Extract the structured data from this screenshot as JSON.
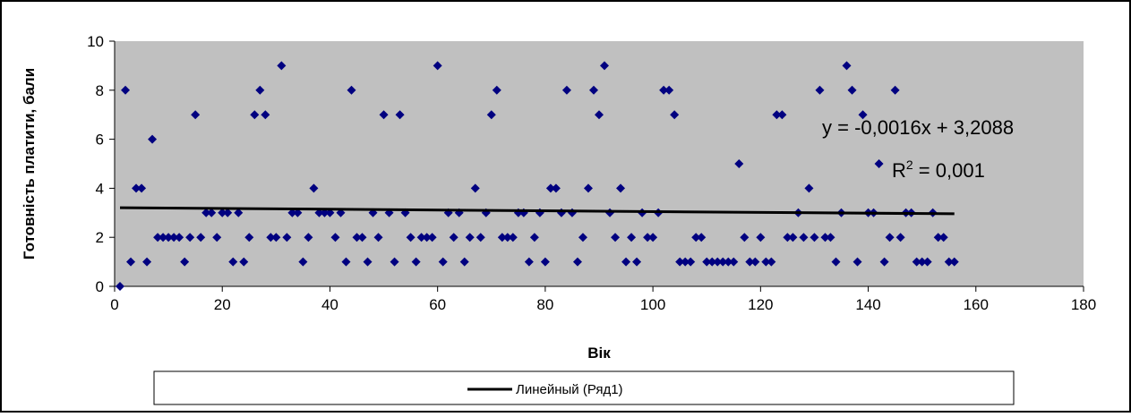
{
  "chart_data": {
    "type": "scatter",
    "xlabel": "Вік",
    "ylabel": "Готовність платити, бали",
    "xlim": [
      0,
      180
    ],
    "ylim": [
      0,
      10
    ],
    "x_ticks": [
      "0",
      "20",
      "40",
      "60",
      "80",
      "100",
      "120",
      "140",
      "160",
      "180"
    ],
    "y_ticks": [
      "0",
      "2",
      "4",
      "6",
      "8",
      "10"
    ],
    "grid": false,
    "plot_background": "#c0c0c0",
    "marker_color": "#000080",
    "trendline_color": "#000000",
    "legend_position": "bottom",
    "legend_entries": [
      "Линейный (Ряд1)"
    ],
    "annotations": {
      "equation": "y = -0,0016x + 3,2088",
      "r2_prefix": "R",
      "r2_sup": "2",
      "r2_suffix": " = 0,001"
    },
    "trendline": {
      "slope": -0.0016,
      "intercept": 3.2088,
      "x_range": [
        1,
        156
      ]
    },
    "series": [
      {
        "values": [
          [
            1,
            0
          ],
          [
            2,
            8
          ],
          [
            3,
            1
          ],
          [
            4,
            4
          ],
          [
            5,
            4
          ],
          [
            6,
            1
          ],
          [
            7,
            6
          ],
          [
            8,
            2
          ],
          [
            9,
            2
          ],
          [
            10,
            2
          ],
          [
            11,
            2
          ],
          [
            12,
            2
          ],
          [
            13,
            1
          ],
          [
            14,
            2
          ],
          [
            15,
            7
          ],
          [
            16,
            2
          ],
          [
            17,
            3
          ],
          [
            18,
            3
          ],
          [
            19,
            2
          ],
          [
            20,
            3
          ],
          [
            21,
            3
          ],
          [
            22,
            1
          ],
          [
            23,
            3
          ],
          [
            24,
            1
          ],
          [
            25,
            2
          ],
          [
            26,
            7
          ],
          [
            27,
            8
          ],
          [
            28,
            7
          ],
          [
            29,
            2
          ],
          [
            30,
            2
          ],
          [
            31,
            9
          ],
          [
            32,
            2
          ],
          [
            33,
            3
          ],
          [
            34,
            3
          ],
          [
            35,
            1
          ],
          [
            36,
            2
          ],
          [
            37,
            4
          ],
          [
            38,
            3
          ],
          [
            39,
            3
          ],
          [
            40,
            3
          ],
          [
            41,
            2
          ],
          [
            42,
            3
          ],
          [
            43,
            1
          ],
          [
            44,
            8
          ],
          [
            45,
            2
          ],
          [
            46,
            2
          ],
          [
            47,
            1
          ],
          [
            48,
            3
          ],
          [
            49,
            2
          ],
          [
            50,
            7
          ],
          [
            51,
            3
          ],
          [
            52,
            1
          ],
          [
            53,
            7
          ],
          [
            54,
            3
          ],
          [
            55,
            2
          ],
          [
            56,
            1
          ],
          [
            57,
            2
          ],
          [
            58,
            2
          ],
          [
            59,
            2
          ],
          [
            60,
            9
          ],
          [
            61,
            1
          ],
          [
            62,
            3
          ],
          [
            63,
            2
          ],
          [
            64,
            3
          ],
          [
            65,
            1
          ],
          [
            66,
            2
          ],
          [
            67,
            4
          ],
          [
            68,
            2
          ],
          [
            69,
            3
          ],
          [
            70,
            7
          ],
          [
            71,
            8
          ],
          [
            72,
            2
          ],
          [
            73,
            2
          ],
          [
            74,
            2
          ],
          [
            75,
            3
          ],
          [
            76,
            3
          ],
          [
            77,
            1
          ],
          [
            78,
            2
          ],
          [
            79,
            3
          ],
          [
            80,
            1
          ],
          [
            81,
            4
          ],
          [
            82,
            4
          ],
          [
            83,
            3
          ],
          [
            84,
            8
          ],
          [
            85,
            3
          ],
          [
            86,
            1
          ],
          [
            87,
            2
          ],
          [
            88,
            4
          ],
          [
            89,
            8
          ],
          [
            90,
            7
          ],
          [
            91,
            9
          ],
          [
            92,
            3
          ],
          [
            93,
            2
          ],
          [
            94,
            4
          ],
          [
            95,
            1
          ],
          [
            96,
            2
          ],
          [
            97,
            1
          ],
          [
            98,
            3
          ],
          [
            99,
            2
          ],
          [
            100,
            2
          ],
          [
            101,
            3
          ],
          [
            102,
            8
          ],
          [
            103,
            8
          ],
          [
            104,
            7
          ],
          [
            105,
            1
          ],
          [
            106,
            1
          ],
          [
            107,
            1
          ],
          [
            108,
            2
          ],
          [
            109,
            2
          ],
          [
            110,
            1
          ],
          [
            111,
            1
          ],
          [
            112,
            1
          ],
          [
            113,
            1
          ],
          [
            114,
            1
          ],
          [
            115,
            1
          ],
          [
            116,
            5
          ],
          [
            117,
            2
          ],
          [
            118,
            1
          ],
          [
            119,
            1
          ],
          [
            120,
            2
          ],
          [
            121,
            1
          ],
          [
            122,
            1
          ],
          [
            123,
            7
          ],
          [
            124,
            7
          ],
          [
            125,
            2
          ],
          [
            126,
            2
          ],
          [
            127,
            3
          ],
          [
            128,
            2
          ],
          [
            129,
            4
          ],
          [
            130,
            2
          ],
          [
            131,
            8
          ],
          [
            132,
            2
          ],
          [
            133,
            2
          ],
          [
            134,
            1
          ],
          [
            135,
            3
          ],
          [
            136,
            9
          ],
          [
            137,
            8
          ],
          [
            138,
            1
          ],
          [
            139,
            7
          ],
          [
            140,
            3
          ],
          [
            141,
            3
          ],
          [
            142,
            5
          ],
          [
            143,
            1
          ],
          [
            144,
            2
          ],
          [
            145,
            8
          ],
          [
            146,
            2
          ],
          [
            147,
            3
          ],
          [
            148,
            3
          ],
          [
            149,
            1
          ],
          [
            150,
            1
          ],
          [
            151,
            1
          ],
          [
            152,
            3
          ],
          [
            153,
            2
          ],
          [
            154,
            2
          ],
          [
            155,
            1
          ],
          [
            156,
            1
          ]
        ]
      }
    ]
  }
}
